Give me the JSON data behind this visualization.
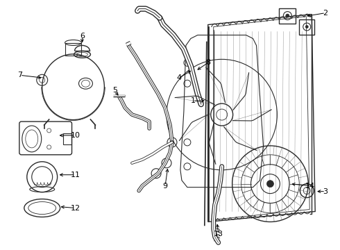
{
  "background_color": "#ffffff",
  "line_color": "#2a2a2a",
  "label_color": "#000000",
  "fig_w": 4.9,
  "fig_h": 3.6,
  "dpi": 100
}
